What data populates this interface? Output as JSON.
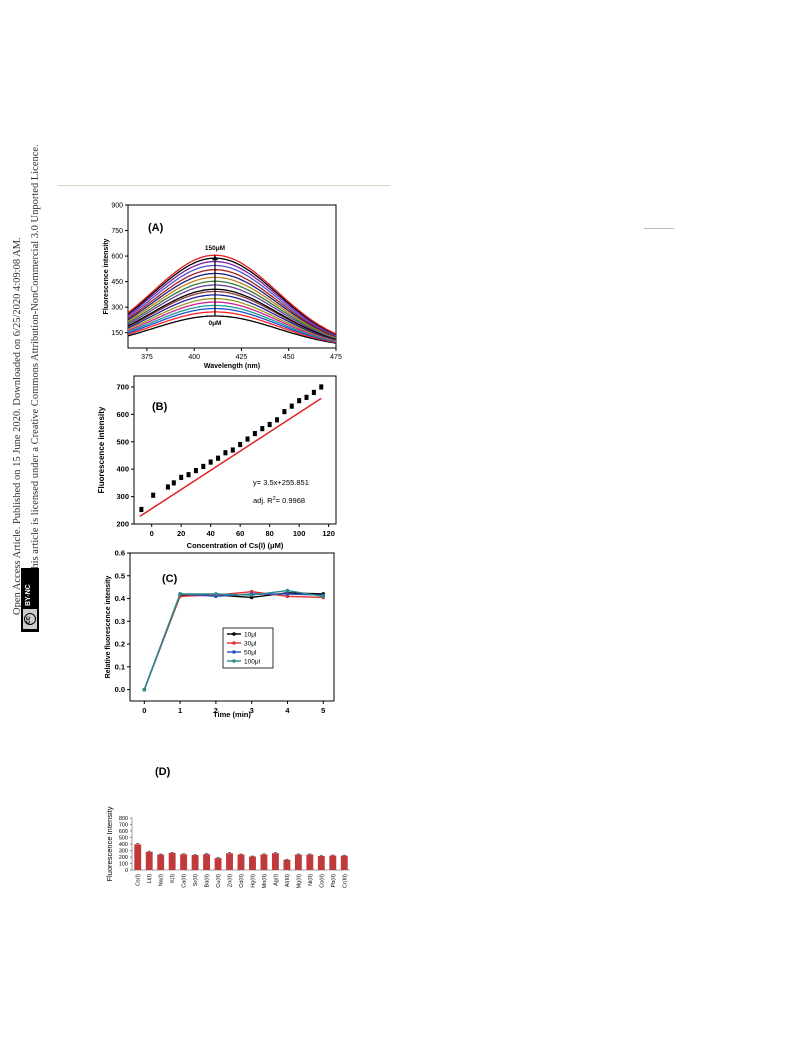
{
  "sidebar": {
    "line1": "Open Access Article. Published on 15 June 2020. Downloaded on 6/25/2020 4:09:08 AM.",
    "line2": "This article is licensed under a Creative Commons Attribution-NonCommercial 3.0 Unported Licence.",
    "badge_cc": "cc",
    "badge_bync": "BY-NC"
  },
  "chart_data": [
    {
      "panel": "(A)",
      "type": "line",
      "xlabel": "Wavelength (nm)",
      "ylabel": "Fluorescence intensity",
      "xlim": [
        365,
        475
      ],
      "ylim": [
        60,
        900
      ],
      "xticks": [
        375,
        400,
        425,
        450,
        475
      ],
      "yticks": [
        150,
        300,
        450,
        600,
        750,
        900
      ],
      "peak_x": 411,
      "width": 33,
      "top_label": "150μM",
      "bottom_label": "0μM",
      "series": [
        {
          "peak": 248,
          "color": "#000000"
        },
        {
          "peak": 272,
          "color": "#ff2020"
        },
        {
          "peak": 292,
          "color": "#1f4fd0"
        },
        {
          "peak": 310,
          "color": "#1a9a9a"
        },
        {
          "peak": 330,
          "color": "#d02090"
        },
        {
          "peak": 350,
          "color": "#9a9a20"
        },
        {
          "peak": 372,
          "color": "#20209a"
        },
        {
          "peak": 392,
          "color": "#8b3a3a"
        },
        {
          "peak": 405,
          "color": "#000000"
        },
        {
          "peak": 430,
          "color": "#6a3fa0"
        },
        {
          "peak": 452,
          "color": "#3a7a3a"
        },
        {
          "peak": 475,
          "color": "#c08020"
        },
        {
          "peak": 498,
          "color": "#20207a"
        },
        {
          "peak": 520,
          "color": "#a02020"
        },
        {
          "peak": 545,
          "color": "#5050d0"
        },
        {
          "peak": 568,
          "color": "#8020a0"
        },
        {
          "peak": 588,
          "color": "#000000"
        },
        {
          "peak": 605,
          "color": "#e02020"
        }
      ]
    },
    {
      "panel": "(B)",
      "type": "scatter",
      "xlabel": "Concentration of Cs(I) (μM)",
      "ylabel": "Fluorescence intensity",
      "xlim": [
        -12,
        125
      ],
      "ylim": [
        200,
        740
      ],
      "xticks": [
        0,
        20,
        40,
        60,
        80,
        100,
        120
      ],
      "yticks": [
        200,
        300,
        400,
        500,
        600,
        700
      ],
      "x": [
        -7,
        1,
        11,
        15,
        20,
        25,
        30,
        35,
        40,
        45,
        50,
        55,
        60,
        65,
        70,
        75,
        80,
        85,
        90,
        95,
        100,
        105,
        110,
        115
      ],
      "y": [
        253,
        305,
        335,
        350,
        370,
        380,
        395,
        410,
        426,
        440,
        460,
        470,
        490,
        510,
        530,
        548,
        563,
        580,
        610,
        630,
        650,
        662,
        680,
        700
      ],
      "fit_slope": 3.5,
      "fit_intercept": 255.851,
      "equation": "y= 3.5x+255.851",
      "r2_prefix": "adj. R",
      "r2_sup": "2",
      "r2_value": "= 0.9968"
    },
    {
      "panel": "(C)",
      "type": "line",
      "xlabel": "Time (min)",
      "ylabel": "Relative fluorescence intensity",
      "xlim": [
        -0.4,
        5.3
      ],
      "ylim": [
        -0.05,
        0.6
      ],
      "xticks": [
        0,
        1,
        2,
        3,
        4,
        5
      ],
      "yticks": [
        0.0,
        0.1,
        0.2,
        0.3,
        0.4,
        0.5,
        0.6
      ],
      "x": [
        0,
        1,
        2,
        3,
        4,
        5
      ],
      "series": [
        {
          "name": "10μl",
          "values": [
            0.0,
            0.415,
            0.415,
            0.405,
            0.425,
            0.42
          ],
          "color": "#000000"
        },
        {
          "name": "30μl",
          "values": [
            0.0,
            0.41,
            0.415,
            0.43,
            0.41,
            0.405
          ],
          "color": "#e03030"
        },
        {
          "name": "50μl",
          "values": [
            0.0,
            0.42,
            0.41,
            0.42,
            0.42,
            0.415
          ],
          "color": "#3050c0"
        },
        {
          "name": "100μl",
          "values": [
            0.0,
            0.42,
            0.42,
            0.415,
            0.435,
            0.41
          ],
          "color": "#2a8a8a"
        }
      ]
    },
    {
      "panel": "(D)",
      "type": "bar",
      "ylabel": "Fluorescence Intensity",
      "ylim": [
        0,
        800
      ],
      "yticks": [
        0,
        100,
        200,
        300,
        400,
        500,
        600,
        700,
        800
      ],
      "categories": [
        "Cs(I)",
        "Li(I)",
        "Na(I)",
        "K(I)",
        "Ca(II)",
        "Sr(II)",
        "Ba(II)",
        "Cu(II)",
        "Zn(II)",
        "Cd(II)",
        "Hg(II)",
        "Mn(II)",
        "Ag(I)",
        "Al(III)",
        "Mg(II)",
        "Ni(II)",
        "Co(II)",
        "Pb(II)",
        "Cr(III)"
      ],
      "values": [
        395,
        280,
        238,
        262,
        242,
        230,
        243,
        183,
        258,
        238,
        208,
        240,
        258,
        158,
        238,
        238,
        215,
        222,
        220
      ],
      "errors": [
        14,
        10,
        8,
        10,
        8,
        8,
        9,
        7,
        9,
        8,
        7,
        9,
        9,
        7,
        9,
        9,
        8,
        8,
        8
      ],
      "bar_color": "#c0393b"
    }
  ]
}
